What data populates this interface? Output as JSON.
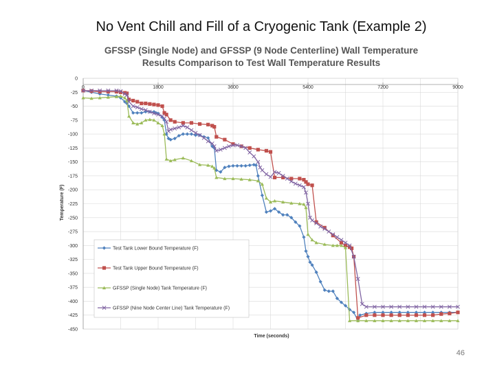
{
  "slide": {
    "title": "No Vent Chill and Fill of a Cryogenic Tank (Example 2)",
    "page_number": "46"
  },
  "chart_data": {
    "type": "line",
    "title": "GFSSP (Single Node) and GFSSP (9 Node Centerline) Wall Temperature Results Comparison to Test Wall Temperature Results",
    "title_line1": "GFSSP (Single Node) and GFSSP (9 Node Centerline) Wall Temperature",
    "title_line2": "Results Comparison to Test Wall Temperature Results",
    "xlabel": "Time (seconds)",
    "ylabel": "Temperature (F)",
    "xlim": [
      0,
      9000
    ],
    "ylim": [
      -450,
      0
    ],
    "xticks": [
      0,
      1800,
      3600,
      5400,
      7200,
      9000
    ],
    "yticks": [
      0,
      -25,
      -50,
      -75,
      -100,
      -125,
      -150,
      -175,
      -200,
      -225,
      -250,
      -275,
      -300,
      -325,
      -350,
      -375,
      -400,
      -425,
      -450
    ],
    "ytick_labels": [
      "0",
      "-25",
      "-50",
      "-75",
      "-100",
      "-125",
      "-150",
      "-175",
      "-200",
      "-225",
      "-250",
      "-275",
      "-300",
      "-325",
      "-350",
      "-375",
      "-400",
      "-425",
      "-450"
    ],
    "grid": true,
    "legend_position": "bottom-left",
    "series": [
      {
        "name": "Test Tank Lower Bound Temperature (F)",
        "color": "#4f81bd",
        "marker": "diamond",
        "x": [
          0,
          200,
          400,
          600,
          800,
          900,
          1000,
          1050,
          1100,
          1200,
          1300,
          1400,
          1500,
          1600,
          1700,
          1750,
          1800,
          1900,
          1950,
          2000,
          2050,
          2100,
          2200,
          2300,
          2400,
          2500,
          2600,
          2700,
          2800,
          2900,
          3000,
          3100,
          3150,
          3200,
          3300,
          3400,
          3500,
          3600,
          3700,
          3800,
          3900,
          4000,
          4100,
          4150,
          4200,
          4300,
          4400,
          4500,
          4600,
          4700,
          4800,
          4900,
          5000,
          5100,
          5200,
          5300,
          5350,
          5400,
          5450,
          5500,
          5600,
          5700,
          5800,
          5900,
          6000,
          6100,
          6200,
          6300,
          6400,
          6500,
          6600,
          6650,
          6800,
          7000,
          7200,
          7400,
          7600,
          7800,
          8000,
          8200,
          8400,
          8600,
          8800,
          9000
        ],
        "y": [
          -22,
          -25,
          -28,
          -30,
          -32,
          -35,
          -42,
          -45,
          -50,
          -62,
          -62,
          -62,
          -60,
          -60,
          -60,
          -62,
          -63,
          -70,
          -75,
          -100,
          -108,
          -110,
          -108,
          -103,
          -100,
          -100,
          -100,
          -102,
          -102,
          -105,
          -107,
          -122,
          -125,
          -165,
          -168,
          -160,
          -158,
          -157,
          -157,
          -157,
          -157,
          -156,
          -155,
          -156,
          -175,
          -210,
          -240,
          -238,
          -234,
          -240,
          -245,
          -245,
          -250,
          -258,
          -265,
          -285,
          -310,
          -320,
          -330,
          -335,
          -348,
          -365,
          -380,
          -382,
          -382,
          -395,
          -402,
          -408,
          -415,
          -420,
          -435,
          -425,
          -422,
          -420,
          -420,
          -420,
          -420,
          -420,
          -420,
          -420,
          -420,
          -420,
          -420,
          -420
        ]
      },
      {
        "name": "Test Tank Upper Bound Temperature (F)",
        "color": "#c0504d",
        "marker": "square",
        "x": [
          0,
          200,
          400,
          600,
          800,
          900,
          1000,
          1050,
          1100,
          1200,
          1300,
          1400,
          1500,
          1600,
          1700,
          1800,
          1900,
          1950,
          2000,
          2100,
          2200,
          2400,
          2600,
          2800,
          3000,
          3100,
          3150,
          3200,
          3400,
          3600,
          3800,
          4000,
          4200,
          4400,
          4500,
          4600,
          4800,
          5000,
          5200,
          5300,
          5350,
          5400,
          5500,
          5600,
          5800,
          6000,
          6200,
          6300,
          6400,
          6450,
          6500,
          6600,
          6800,
          7000,
          7200,
          7400,
          7600,
          7800,
          8000,
          8200,
          8400,
          8600,
          8800,
          9000
        ],
        "y": [
          -22,
          -23,
          -24,
          -24,
          -24,
          -25,
          -26,
          -27,
          -38,
          -40,
          -42,
          -45,
          -45,
          -46,
          -47,
          -48,
          -50,
          -62,
          -65,
          -75,
          -78,
          -80,
          -80,
          -82,
          -83,
          -85,
          -87,
          -105,
          -110,
          -118,
          -122,
          -125,
          -128,
          -130,
          -132,
          -178,
          -178,
          -180,
          -180,
          -182,
          -186,
          -190,
          -192,
          -258,
          -268,
          -282,
          -295,
          -300,
          -303,
          -305,
          -320,
          -430,
          -425,
          -425,
          -425,
          -425,
          -425,
          -425,
          -425,
          -425,
          -425,
          -423,
          -422,
          -420
        ]
      },
      {
        "name": "GFSSP (Single Node) Tank Temperature (F)",
        "color": "#9bbb59",
        "marker": "triangle",
        "x": [
          0,
          200,
          400,
          600,
          800,
          900,
          1000,
          1050,
          1100,
          1200,
          1300,
          1400,
          1500,
          1600,
          1700,
          1800,
          1900,
          1950,
          2000,
          2100,
          2200,
          2400,
          2600,
          2800,
          3000,
          3100,
          3150,
          3200,
          3400,
          3600,
          3800,
          4000,
          4200,
          4300,
          4400,
          4500,
          4600,
          4800,
          5000,
          5200,
          5300,
          5350,
          5400,
          5500,
          5600,
          5800,
          6000,
          6100,
          6200,
          6300,
          6400,
          6600,
          6800,
          7000,
          7200,
          7400,
          7600,
          7800,
          8000,
          8200,
          8400,
          8600,
          8800,
          9000
        ],
        "y": [
          -35,
          -36,
          -35,
          -34,
          -33,
          -32,
          -35,
          -40,
          -68,
          -80,
          -82,
          -80,
          -75,
          -74,
          -75,
          -80,
          -85,
          -100,
          -145,
          -148,
          -146,
          -143,
          -148,
          -155,
          -156,
          -158,
          -161,
          -178,
          -180,
          -180,
          -181,
          -182,
          -184,
          -190,
          -215,
          -222,
          -220,
          -222,
          -224,
          -225,
          -226,
          -232,
          -280,
          -290,
          -295,
          -298,
          -300,
          -300,
          -300,
          -304,
          -435,
          -435,
          -435,
          -435,
          -435,
          -435,
          -435,
          -435,
          -435,
          -435,
          -435,
          -435,
          -435,
          -435
        ]
      },
      {
        "name": "GFSSP (Nine Node Center Line) Tank Temperature (F)",
        "color": "#8064a2",
        "marker": "x",
        "x": [
          0,
          200,
          400,
          600,
          800,
          900,
          1000,
          1050,
          1100,
          1200,
          1300,
          1400,
          1500,
          1600,
          1700,
          1800,
          1900,
          1950,
          2000,
          2050,
          2100,
          2200,
          2300,
          2400,
          2500,
          2600,
          2700,
          2800,
          2900,
          3000,
          3100,
          3150,
          3200,
          3300,
          3400,
          3500,
          3600,
          3700,
          3800,
          3900,
          4000,
          4100,
          4200,
          4250,
          4300,
          4400,
          4500,
          4600,
          4700,
          4800,
          4900,
          5000,
          5100,
          5200,
          5300,
          5350,
          5400,
          5450,
          5500,
          5600,
          5700,
          5800,
          5900,
          6000,
          6100,
          6200,
          6300,
          6400,
          6500,
          6600,
          6700,
          6800,
          7000,
          7200,
          7400,
          7600,
          7800,
          8000,
          8200,
          8400,
          8600,
          8800,
          9000
        ],
        "y": [
          -22,
          -22,
          -22,
          -22,
          -22,
          -23,
          -28,
          -30,
          -42,
          -50,
          -52,
          -55,
          -57,
          -60,
          -63,
          -65,
          -68,
          -72,
          -78,
          -95,
          -92,
          -90,
          -88,
          -85,
          -88,
          -93,
          -98,
          -102,
          -107,
          -113,
          -117,
          -122,
          -130,
          -128,
          -125,
          -122,
          -120,
          -120,
          -122,
          -125,
          -133,
          -140,
          -150,
          -160,
          -165,
          -172,
          -177,
          -168,
          -170,
          -175,
          -180,
          -185,
          -189,
          -192,
          -195,
          -205,
          -225,
          -250,
          -255,
          -260,
          -266,
          -270,
          -275,
          -280,
          -285,
          -290,
          -295,
          -300,
          -320,
          -360,
          -405,
          -410,
          -410,
          -410,
          -410,
          -410,
          -410,
          -410,
          -410,
          -410,
          -410,
          -410,
          -410
        ]
      }
    ]
  }
}
